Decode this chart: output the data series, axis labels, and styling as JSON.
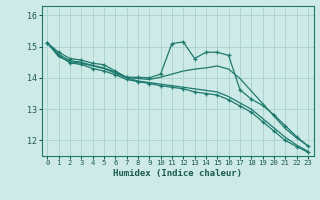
{
  "xlabel": "Humidex (Indice chaleur)",
  "xlim": [
    -0.5,
    23.5
  ],
  "ylim": [
    11.5,
    16.3
  ],
  "bg_color": "#ceeae6",
  "grid_color": "#aed4d0",
  "line_color": "#1e7a6e",
  "xticks": [
    0,
    1,
    2,
    3,
    4,
    5,
    6,
    7,
    8,
    9,
    10,
    11,
    12,
    13,
    14,
    15,
    16,
    17,
    18,
    19,
    20,
    21,
    22,
    23
  ],
  "yticks": [
    12,
    13,
    14,
    15,
    16
  ],
  "series": [
    {
      "x": [
        0,
        1,
        2,
        3,
        4,
        5,
        6,
        7,
        8,
        9,
        10,
        11,
        12,
        13,
        14,
        15,
        16,
        17,
        18,
        19,
        20,
        21,
        22,
        23
      ],
      "y": [
        15.12,
        14.82,
        14.62,
        14.57,
        14.47,
        14.42,
        14.22,
        14.02,
        14.02,
        14.0,
        14.12,
        15.1,
        15.15,
        14.62,
        14.82,
        14.82,
        14.72,
        13.62,
        13.32,
        13.12,
        12.82,
        12.47,
        12.12,
        11.82
      ],
      "marker": true
    },
    {
      "x": [
        0,
        1,
        2,
        3,
        4,
        5,
        6,
        7,
        8,
        9,
        10,
        11,
        12,
        13,
        14,
        15,
        16,
        17,
        18,
        19,
        20,
        21,
        22,
        23
      ],
      "y": [
        15.12,
        14.75,
        14.55,
        14.5,
        14.4,
        14.32,
        14.18,
        14.02,
        13.98,
        13.95,
        14.02,
        14.12,
        14.22,
        14.28,
        14.32,
        14.38,
        14.28,
        13.98,
        13.58,
        13.18,
        12.78,
        12.38,
        12.08,
        11.82
      ],
      "marker": false
    },
    {
      "x": [
        0,
        1,
        2,
        3,
        4,
        5,
        6,
        7,
        8,
        9,
        10,
        11,
        12,
        13,
        14,
        15,
        16,
        17,
        18,
        19,
        20,
        21,
        22,
        23
      ],
      "y": [
        15.12,
        14.68,
        14.52,
        14.47,
        14.38,
        14.3,
        14.15,
        14.0,
        13.9,
        13.85,
        13.8,
        13.75,
        13.7,
        13.65,
        13.6,
        13.55,
        13.4,
        13.2,
        13.0,
        12.7,
        12.4,
        12.1,
        11.85,
        11.65
      ],
      "marker": false
    },
    {
      "x": [
        0,
        1,
        2,
        3,
        4,
        5,
        6,
        7,
        8,
        9,
        10,
        11,
        12,
        13,
        14,
        15,
        16,
        17,
        18,
        19,
        20,
        21,
        22,
        23
      ],
      "y": [
        15.12,
        14.72,
        14.48,
        14.43,
        14.3,
        14.22,
        14.1,
        13.95,
        13.88,
        13.82,
        13.75,
        13.7,
        13.65,
        13.55,
        13.5,
        13.45,
        13.3,
        13.1,
        12.9,
        12.6,
        12.3,
        12.0,
        11.8,
        11.62
      ],
      "marker": true
    }
  ]
}
